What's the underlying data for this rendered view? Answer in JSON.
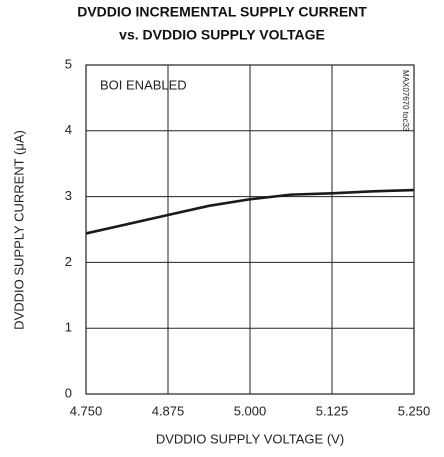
{
  "chart_data": {
    "type": "line",
    "title": [
      "DVDDIO INCREMENTAL SUPPLY CURRENT",
      "vs. DVDDIO SUPPLY VOLTAGE"
    ],
    "xlabel": "DVDDIO SUPPLY VOLTAGE (V)",
    "ylabel": "DVDDIO SUPPLY CURRENT (μA)",
    "annotations": [
      "BOI ENABLED",
      "MAX07670 toc33"
    ],
    "x": [
      4.75,
      4.8125,
      4.875,
      4.9375,
      5.0,
      5.0625,
      5.125,
      5.1875,
      5.25
    ],
    "values": [
      2.44,
      2.58,
      2.72,
      2.86,
      2.96,
      3.03,
      3.05,
      3.08,
      3.1
    ],
    "color": "#1a1a1a",
    "xlim": [
      4.75,
      5.25
    ],
    "xticks": [
      {
        "value": 4.75,
        "label": "4.750"
      },
      {
        "value": 4.875,
        "label": "4.875"
      },
      {
        "value": 5,
        "label": "5.000"
      },
      {
        "value": 5.125,
        "label": "5.125"
      },
      {
        "value": 5.25,
        "label": "5.250"
      }
    ],
    "ylim": [
      0,
      5
    ],
    "yticks": [
      0,
      1,
      2,
      3,
      4,
      5
    ],
    "grid": true
  }
}
